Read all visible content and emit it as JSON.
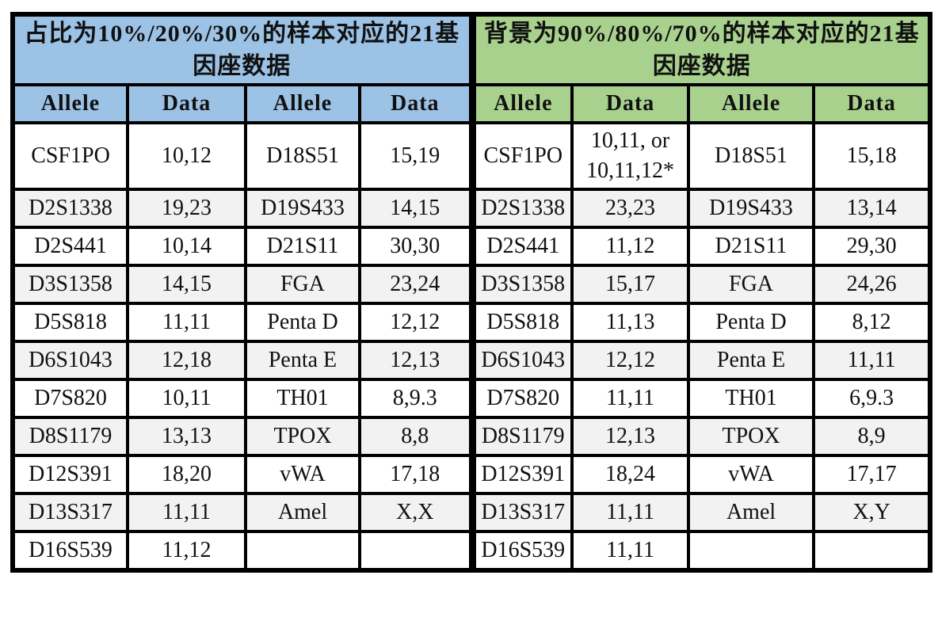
{
  "left_table": {
    "title": "占比为10%/20%/30%的样本对应的21基因座数据",
    "columns": [
      "Allele",
      "Data",
      "Allele",
      "Data"
    ],
    "rows": [
      [
        "CSF1PO",
        "10,12",
        "D18S51",
        "15,19"
      ],
      [
        "D2S1338",
        "19,23",
        "D19S433",
        "14,15"
      ],
      [
        "D2S441",
        "10,14",
        "D21S11",
        "30,30"
      ],
      [
        "D3S1358",
        "14,15",
        "FGA",
        "23,24"
      ],
      [
        "D5S818",
        "11,11",
        "Penta D",
        "12,12"
      ],
      [
        "D6S1043",
        "12,18",
        "Penta E",
        "12,13"
      ],
      [
        "D7S820",
        "10,11",
        "TH01",
        "8,9.3"
      ],
      [
        "D8S1179",
        "13,13",
        "TPOX",
        "8,8"
      ],
      [
        "D12S391",
        "18,20",
        "vWA",
        "17,18"
      ],
      [
        "D13S317",
        "11,11",
        "Amel",
        "X,X"
      ],
      [
        "D16S539",
        "11,12",
        "",
        ""
      ]
    ]
  },
  "right_table": {
    "title": "背景为90%/80%/70%的样本对应的21基因座数据",
    "columns": [
      "Allele",
      "Data",
      "Allele",
      "Data"
    ],
    "rows": [
      [
        "CSF1PO",
        "10,11, or\n10,11,12*",
        "D18S51",
        "15,18"
      ],
      [
        "D2S1338",
        "23,23",
        "D19S433",
        "13,14"
      ],
      [
        "D2S441",
        "11,12",
        "D21S11",
        "29,30"
      ],
      [
        "D3S1358",
        "15,17",
        "FGA",
        "24,26"
      ],
      [
        "D5S818",
        "11,13",
        "Penta D",
        "8,12"
      ],
      [
        "D6S1043",
        "12,12",
        "Penta E",
        "11,11"
      ],
      [
        "D7S820",
        "11,11",
        "TH01",
        "6,9.3"
      ],
      [
        "D8S1179",
        "12,13",
        "TPOX",
        "8,9"
      ],
      [
        "D12S391",
        "18,24",
        "vWA",
        "17,17"
      ],
      [
        "D13S317",
        "11,11",
        "Amel",
        "X,Y"
      ],
      [
        "D16S539",
        "11,11",
        "",
        ""
      ]
    ]
  },
  "colors": {
    "left_header_bg": "#9CC2E5",
    "right_header_bg": "#A9D18E",
    "alt_row_bg": "#F2F2F2",
    "row_bg": "#FFFFFF",
    "border": "#000000",
    "text": "#111111"
  }
}
